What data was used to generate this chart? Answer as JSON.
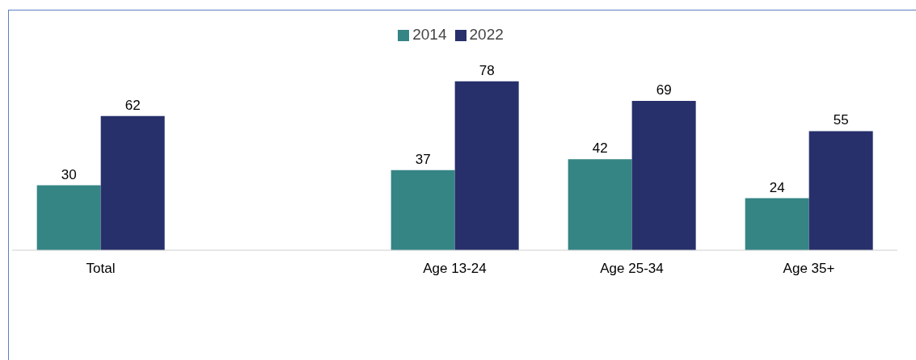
{
  "chart_data": {
    "type": "bar",
    "categories": [
      "Total",
      null,
      "Age 13-24",
      "Age 25-34",
      "Age 35+"
    ],
    "series": [
      {
        "name": "2014",
        "color": "#358585",
        "values": [
          30,
          null,
          37,
          42,
          24
        ]
      },
      {
        "name": "2022",
        "color": "#27306b",
        "values": [
          62,
          null,
          78,
          69,
          55
        ]
      }
    ],
    "data_labels": true,
    "legend": "top",
    "grid": false
  }
}
